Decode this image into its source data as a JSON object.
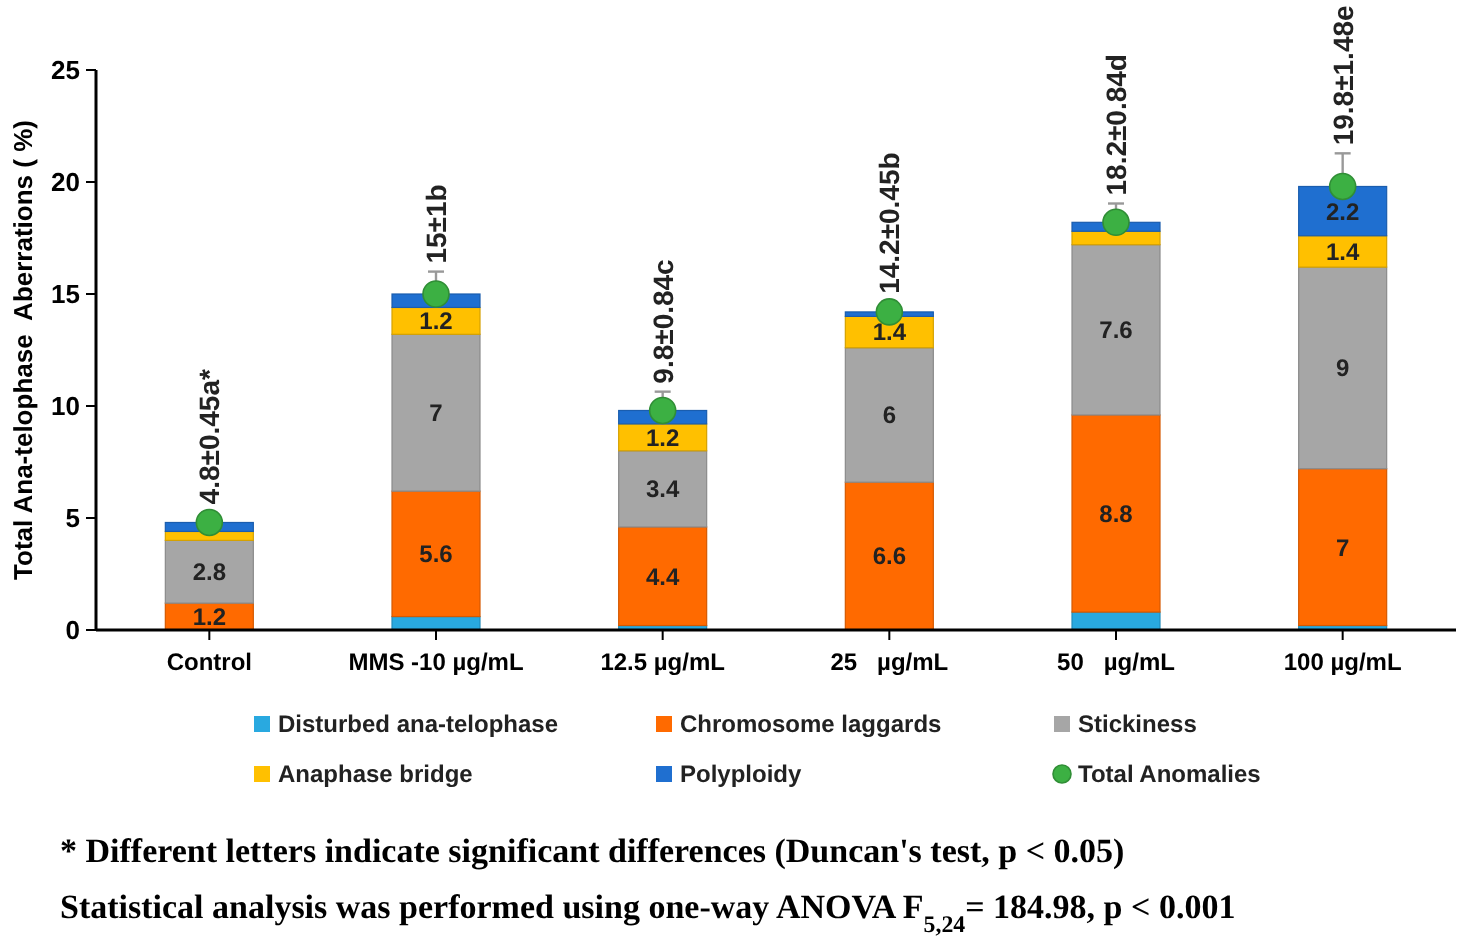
{
  "chart_data": {
    "type": "bar",
    "stacked": true,
    "ylabel": "Total Ana-telophase  Aberrations ( %)",
    "categories": [
      "Control",
      "MMS -10 µg/mL",
      "12.5 µg/mL",
      "25   µg/mL",
      "50   µg/mL",
      "100 µg/mL"
    ],
    "ylim": [
      0,
      25
    ],
    "yticks": [
      0,
      5,
      10,
      15,
      20,
      25
    ],
    "grid": false,
    "legend": "bottom",
    "marker": "circle",
    "series": [
      {
        "name": "Disturbed ana-telophase",
        "color": "#29a9e0",
        "values": [
          0,
          0.6,
          0.2,
          0,
          0.8,
          0.2
        ]
      },
      {
        "name": "Chromosome laggards",
        "color": "#ff6a00",
        "values": [
          1.2,
          5.6,
          4.4,
          6.6,
          8.8,
          7
        ],
        "value_labels": [
          "1.2",
          "5.6",
          "4.4",
          "6.6",
          "8.8",
          "7"
        ]
      },
      {
        "name": "Stickiness",
        "color": "#a6a6a6",
        "values": [
          2.8,
          7,
          3.4,
          6,
          7.6,
          9
        ],
        "value_labels": [
          "2.8",
          "7",
          "3.4",
          "6",
          "7.6",
          "9"
        ]
      },
      {
        "name": "Anaphase bridge",
        "color": "#ffc000",
        "values": [
          0.4,
          1.2,
          1.2,
          1.4,
          0.6,
          1.4
        ],
        "value_labels": [
          null,
          "1.2",
          "1.2",
          "1.4",
          null,
          "1.4"
        ]
      },
      {
        "name": "Polyploidy",
        "color": "#1f6fd0",
        "values": [
          0.4,
          0.6,
          0.6,
          0.2,
          0.4,
          2.2
        ],
        "value_labels": [
          null,
          null,
          null,
          null,
          null,
          "2.2"
        ]
      },
      {
        "name": "Total Anomalies",
        "type": "scatter",
        "color": "#3cb043",
        "values": [
          4.8,
          15,
          9.8,
          14.2,
          18.2,
          19.8
        ],
        "errors": [
          0.45,
          1,
          0.84,
          0.45,
          0.84,
          1.48
        ],
        "value_labels": [
          "4.8±0.45a*",
          "15±1b",
          "9.8±0.84c",
          "14.2±0.45b",
          "18.2±0.84d",
          "19.8±1.48e"
        ]
      }
    ],
    "annotations": [
      "* Different letters indicate significant differences (Duncan's test, p < 0.05)",
      "Statistical analysis was performed using one-way ANOVA F$_{5,24}$= 184.98, p < 0.001"
    ]
  }
}
